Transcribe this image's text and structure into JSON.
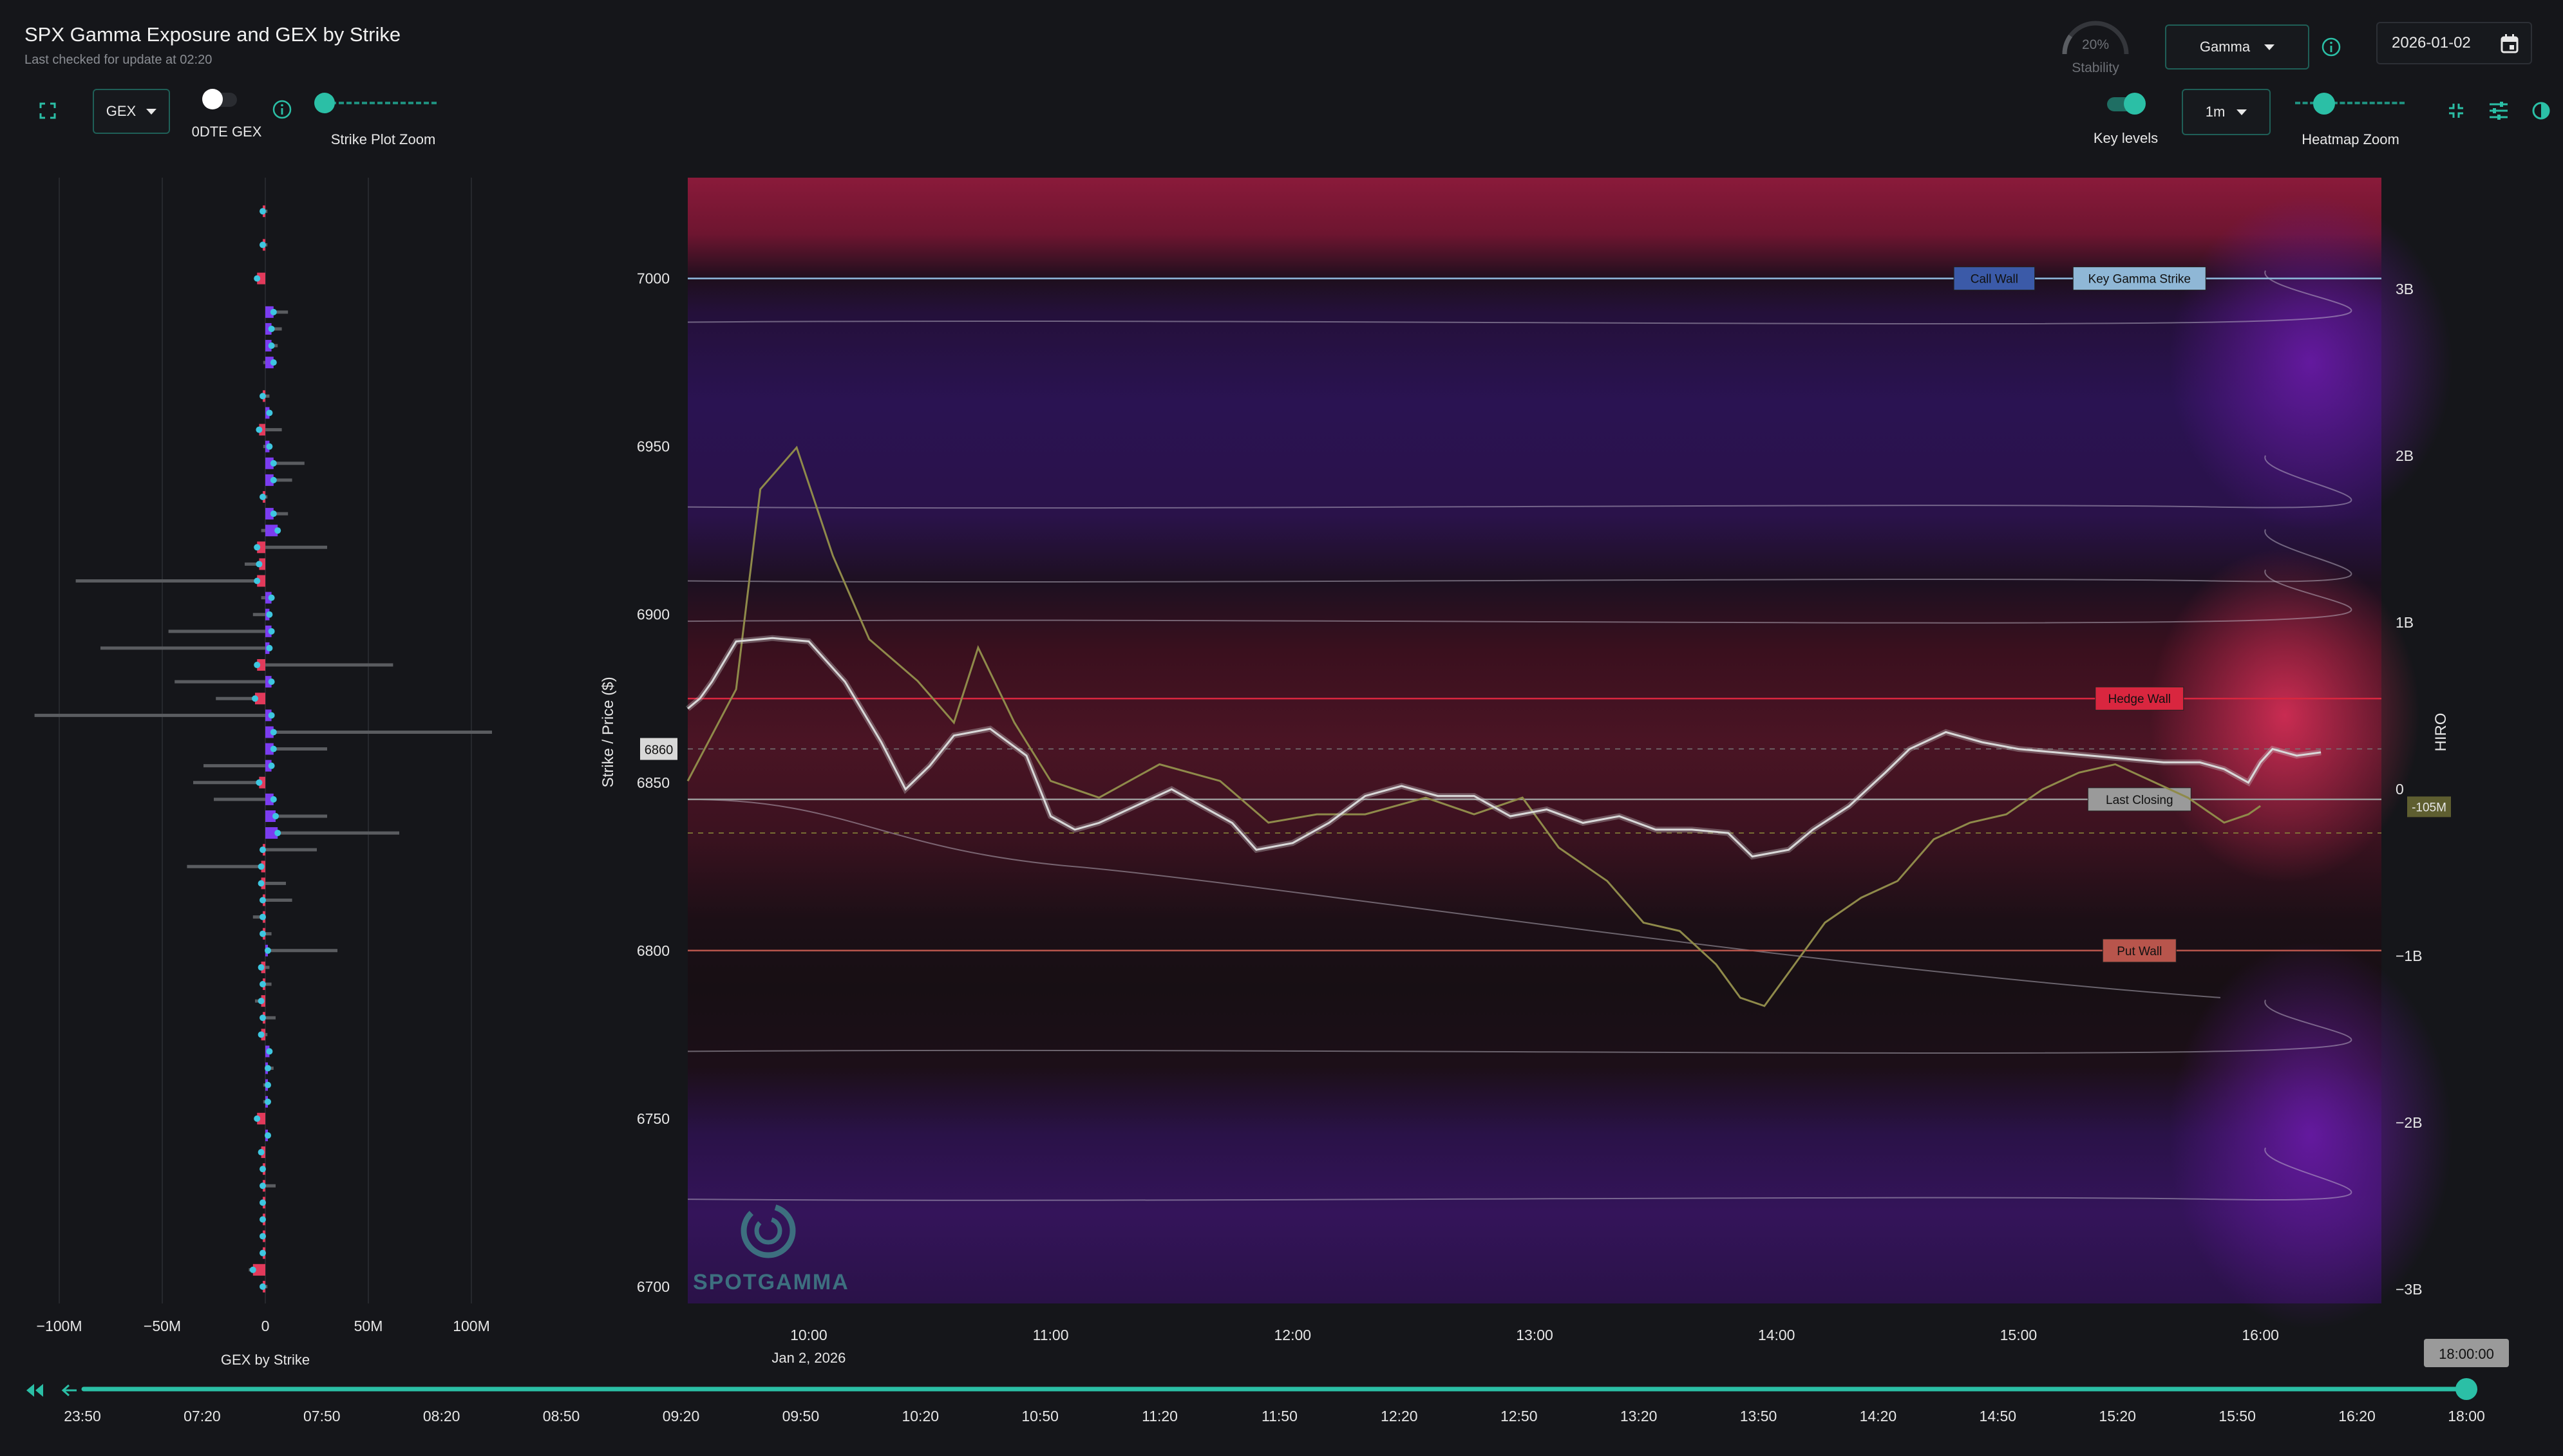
{
  "header": {
    "title": "SPX Gamma Exposure and GEX by Strike",
    "subtitle": "Last checked for update at 02:20",
    "stability_value": "20%",
    "stability_label": "Stability",
    "stability_fraction": 0.2,
    "metric_select": "Gamma",
    "date": "2026-01-02"
  },
  "toolbar": {
    "gex_select": "GEX",
    "odte_label": "0DTE GEX",
    "strike_zoom_label": "Strike Plot Zoom",
    "key_levels_label": "Key levels",
    "interval_select": "1m",
    "heatmap_zoom_label": "Heatmap Zoom"
  },
  "strike_plot": {
    "xlabel": "GEX by Strike",
    "ticks": [
      "−100M",
      "−50M",
      "0",
      "50M",
      "100M"
    ]
  },
  "chart_data": {
    "type": "heatmap",
    "ylabel": "Strike / Price ($)",
    "y2label": "HIRO",
    "ylim": [
      6695,
      7030
    ],
    "y_ticks": [
      "7000",
      "6950",
      "6900",
      "6850",
      "6800",
      "6750",
      "6700"
    ],
    "y2_ticks": [
      "3B",
      "2B",
      "1B",
      "0",
      "−1B",
      "−2B",
      "−3B"
    ],
    "x_ticks": [
      "10:00",
      "11:00",
      "12:00",
      "13:00",
      "14:00",
      "15:00",
      "16:00"
    ],
    "x_sublabel": "Jan 2, 2026",
    "price_marker": "6860",
    "hiro_marker": "-105M",
    "levels": [
      {
        "label": "Call Wall",
        "value": 7000,
        "color": "#3b5aa8"
      },
      {
        "label": "Key Gamma Strike",
        "value": 7000,
        "color": "#8fb7d6"
      },
      {
        "label": "Hedge Wall",
        "value": 6875,
        "color": "#d9263f"
      },
      {
        "label": "Last Closing",
        "value": 6845,
        "color": "#9a9a9a"
      },
      {
        "label": "Put Wall",
        "value": 6800,
        "color": "#b8554c"
      }
    ],
    "price_series": [
      [
        9.5,
        6872
      ],
      [
        9.55,
        6875
      ],
      [
        9.6,
        6880
      ],
      [
        9.7,
        6892
      ],
      [
        9.85,
        6893
      ],
      [
        10.0,
        6892
      ],
      [
        10.15,
        6880
      ],
      [
        10.3,
        6862
      ],
      [
        10.4,
        6848
      ],
      [
        10.5,
        6855
      ],
      [
        10.6,
        6864
      ],
      [
        10.75,
        6866
      ],
      [
        10.9,
        6858
      ],
      [
        11.0,
        6840
      ],
      [
        11.1,
        6836
      ],
      [
        11.2,
        6838
      ],
      [
        11.35,
        6843
      ],
      [
        11.5,
        6848
      ],
      [
        11.6,
        6844
      ],
      [
        11.75,
        6838
      ],
      [
        11.85,
        6830
      ],
      [
        12.0,
        6832
      ],
      [
        12.15,
        6838
      ],
      [
        12.3,
        6846
      ],
      [
        12.45,
        6849
      ],
      [
        12.6,
        6846
      ],
      [
        12.75,
        6846
      ],
      [
        12.9,
        6840
      ],
      [
        13.05,
        6842
      ],
      [
        13.2,
        6838
      ],
      [
        13.35,
        6840
      ],
      [
        13.5,
        6836
      ],
      [
        13.65,
        6836
      ],
      [
        13.8,
        6835
      ],
      [
        13.9,
        6828
      ],
      [
        14.05,
        6830
      ],
      [
        14.15,
        6836
      ],
      [
        14.3,
        6843
      ],
      [
        14.45,
        6853
      ],
      [
        14.55,
        6860
      ],
      [
        14.7,
        6865
      ],
      [
        14.85,
        6862
      ],
      [
        15.0,
        6860
      ],
      [
        15.15,
        6859
      ],
      [
        15.3,
        6858
      ],
      [
        15.45,
        6857
      ],
      [
        15.6,
        6856
      ],
      [
        15.75,
        6856
      ],
      [
        15.85,
        6854
      ],
      [
        15.95,
        6850
      ],
      [
        16.0,
        6856
      ],
      [
        16.05,
        6860
      ],
      [
        16.15,
        6858
      ],
      [
        16.25,
        6859
      ]
    ],
    "hiro_series": [
      [
        9.5,
        0.05
      ],
      [
        9.7,
        0.6
      ],
      [
        9.8,
        1.8
      ],
      [
        9.95,
        2.05
      ],
      [
        10.1,
        1.4
      ],
      [
        10.25,
        0.9
      ],
      [
        10.45,
        0.65
      ],
      [
        10.6,
        0.4
      ],
      [
        10.7,
        0.85
      ],
      [
        10.85,
        0.4
      ],
      [
        11.0,
        0.05
      ],
      [
        11.2,
        -0.05
      ],
      [
        11.45,
        0.15
      ],
      [
        11.7,
        0.05
      ],
      [
        11.9,
        -0.2
      ],
      [
        12.1,
        -0.15
      ],
      [
        12.3,
        -0.15
      ],
      [
        12.55,
        -0.05
      ],
      [
        12.75,
        -0.15
      ],
      [
        12.95,
        -0.05
      ],
      [
        13.1,
        -0.35
      ],
      [
        13.3,
        -0.55
      ],
      [
        13.45,
        -0.8
      ],
      [
        13.6,
        -0.85
      ],
      [
        13.75,
        -1.05
      ],
      [
        13.85,
        -1.25
      ],
      [
        13.95,
        -1.3
      ],
      [
        14.05,
        -1.1
      ],
      [
        14.2,
        -0.8
      ],
      [
        14.35,
        -0.65
      ],
      [
        14.5,
        -0.55
      ],
      [
        14.65,
        -0.3
      ],
      [
        14.8,
        -0.2
      ],
      [
        14.95,
        -0.15
      ],
      [
        15.1,
        0.0
      ],
      [
        15.25,
        0.1
      ],
      [
        15.4,
        0.15
      ],
      [
        15.55,
        0.05
      ],
      [
        15.7,
        -0.05
      ],
      [
        15.85,
        -0.2
      ],
      [
        15.95,
        -0.15
      ],
      [
        16.0,
        -0.1
      ]
    ],
    "gex_bars": [
      [
        7020,
        -1,
        1
      ],
      [
        7010,
        -1,
        1
      ],
      [
        7000,
        -4,
        -2
      ],
      [
        6990,
        4,
        11
      ],
      [
        6985,
        3,
        8
      ],
      [
        6980,
        3,
        6
      ],
      [
        6975,
        4,
        -1
      ],
      [
        6965,
        -1,
        2
      ],
      [
        6960,
        2,
        3
      ],
      [
        6955,
        -3,
        8
      ],
      [
        6950,
        2,
        -1
      ],
      [
        6945,
        4,
        19
      ],
      [
        6940,
        4,
        13
      ],
      [
        6935,
        -1,
        1
      ],
      [
        6930,
        4,
        11
      ],
      [
        6925,
        6,
        -2
      ],
      [
        6920,
        -4,
        30
      ],
      [
        6915,
        -3,
        -10
      ],
      [
        6910,
        -4,
        -92
      ],
      [
        6905,
        3,
        -2
      ],
      [
        6900,
        2,
        -6
      ],
      [
        6895,
        3,
        -47
      ],
      [
        6890,
        2,
        -80
      ],
      [
        6885,
        -4,
        62
      ],
      [
        6880,
        3,
        -44
      ],
      [
        6875,
        -5,
        -24
      ],
      [
        6870,
        3,
        -112
      ],
      [
        6865,
        4,
        110
      ],
      [
        6860,
        4,
        30
      ],
      [
        6855,
        3,
        -30
      ],
      [
        6850,
        -3,
        -35
      ],
      [
        6845,
        4,
        -25
      ],
      [
        6840,
        5,
        30
      ],
      [
        6835,
        6,
        65
      ],
      [
        6830,
        -1,
        25
      ],
      [
        6825,
        -2,
        -38
      ],
      [
        6820,
        -2,
        10
      ],
      [
        6815,
        -1,
        13
      ],
      [
        6810,
        -1,
        -6
      ],
      [
        6805,
        -1,
        3
      ],
      [
        6800,
        1,
        35
      ],
      [
        6795,
        -2,
        2
      ],
      [
        6790,
        -1,
        3
      ],
      [
        6785,
        -2,
        -5
      ],
      [
        6780,
        -1,
        5
      ],
      [
        6775,
        -2,
        1
      ],
      [
        6770,
        2,
        2
      ],
      [
        6765,
        1,
        4
      ],
      [
        6760,
        1,
        -1
      ],
      [
        6755,
        1,
        -1
      ],
      [
        6750,
        -4,
        -2
      ],
      [
        6745,
        1,
        1
      ],
      [
        6740,
        -2,
        0
      ],
      [
        6735,
        -1,
        -1
      ],
      [
        6730,
        -1,
        5
      ],
      [
        6725,
        -1,
        0
      ],
      [
        6720,
        -1,
        -1
      ],
      [
        6715,
        -1,
        0
      ],
      [
        6710,
        -1,
        0
      ],
      [
        6705,
        -6,
        -8
      ],
      [
        6700,
        -1,
        1
      ]
    ]
  },
  "timeline": {
    "ticks": [
      "23:50",
      "07:20",
      "07:50",
      "08:20",
      "08:50",
      "09:20",
      "09:50",
      "10:20",
      "10:50",
      "11:20",
      "11:50",
      "12:20",
      "12:50",
      "13:20",
      "13:50",
      "14:20",
      "14:50",
      "15:20",
      "15:50",
      "16:20",
      "18:00"
    ],
    "current": "18:00:00",
    "progress": 1.0
  },
  "colors": {
    "accent": "#2bbfa6",
    "background": "#15161a",
    "positive_gamma": "#5a1a8a",
    "negative_gamma": "#9a1838",
    "bar_pos": "#7b3cf0",
    "bar_neg": "#e23a5b"
  }
}
